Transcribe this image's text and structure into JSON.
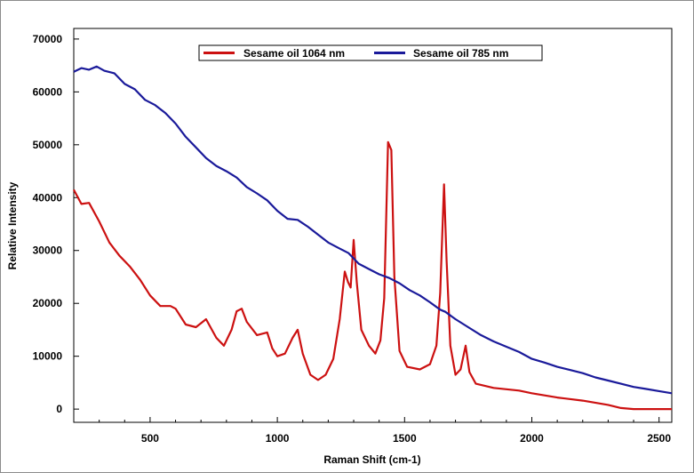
{
  "chart_data": {
    "type": "line",
    "xlabel": "Raman Shift (cm-1)",
    "ylabel": "Relative Intensity",
    "xlim": [
      200,
      2550
    ],
    "ylim": [
      -2500,
      72000
    ],
    "x_ticks": [
      500,
      1000,
      1500,
      2000,
      2500
    ],
    "x_tick_labels": [
      "500",
      "1000",
      "1500",
      "2000",
      "2500"
    ],
    "y_ticks": [
      0,
      10000,
      20000,
      30000,
      40000,
      50000,
      60000,
      70000
    ],
    "y_tick_labels": [
      "0",
      "10000",
      "20000",
      "30000",
      "40000",
      "50000",
      "60000",
      "70000"
    ],
    "grid": false,
    "legend_position": "top-center",
    "series": [
      {
        "name": "Sesame oil 1064 nm",
        "color": "#cc1111",
        "points": [
          [
            200,
            41500
          ],
          [
            230,
            38800
          ],
          [
            260,
            39000
          ],
          [
            300,
            35500
          ],
          [
            340,
            31500
          ],
          [
            380,
            29000
          ],
          [
            420,
            27000
          ],
          [
            460,
            24500
          ],
          [
            500,
            21500
          ],
          [
            540,
            19500
          ],
          [
            580,
            19500
          ],
          [
            600,
            19000
          ],
          [
            640,
            16000
          ],
          [
            680,
            15500
          ],
          [
            720,
            17000
          ],
          [
            760,
            13500
          ],
          [
            790,
            12000
          ],
          [
            820,
            15000
          ],
          [
            840,
            18500
          ],
          [
            860,
            19000
          ],
          [
            880,
            16500
          ],
          [
            920,
            14000
          ],
          [
            960,
            14500
          ],
          [
            980,
            11500
          ],
          [
            1000,
            10000
          ],
          [
            1030,
            10500
          ],
          [
            1060,
            13500
          ],
          [
            1080,
            15000
          ],
          [
            1100,
            10500
          ],
          [
            1130,
            6500
          ],
          [
            1160,
            5500
          ],
          [
            1190,
            6500
          ],
          [
            1220,
            9500
          ],
          [
            1245,
            17000
          ],
          [
            1265,
            26000
          ],
          [
            1278,
            24000
          ],
          [
            1288,
            23000
          ],
          [
            1300,
            32000
          ],
          [
            1312,
            24000
          ],
          [
            1330,
            15000
          ],
          [
            1360,
            12000
          ],
          [
            1385,
            10500
          ],
          [
            1405,
            13000
          ],
          [
            1420,
            21000
          ],
          [
            1435,
            50500
          ],
          [
            1448,
            49000
          ],
          [
            1460,
            25000
          ],
          [
            1480,
            11000
          ],
          [
            1510,
            8000
          ],
          [
            1560,
            7500
          ],
          [
            1600,
            8500
          ],
          [
            1625,
            12000
          ],
          [
            1640,
            22000
          ],
          [
            1655,
            42500
          ],
          [
            1665,
            28000
          ],
          [
            1680,
            12000
          ],
          [
            1700,
            6500
          ],
          [
            1720,
            7500
          ],
          [
            1740,
            12000
          ],
          [
            1755,
            7000
          ],
          [
            1780,
            4800
          ],
          [
            1850,
            4000
          ],
          [
            1950,
            3500
          ],
          [
            2000,
            3000
          ],
          [
            2100,
            2200
          ],
          [
            2200,
            1600
          ],
          [
            2300,
            800
          ],
          [
            2350,
            200
          ],
          [
            2400,
            0
          ],
          [
            2550,
            0
          ]
        ]
      },
      {
        "name": "Sesame oil 785 nm",
        "color": "#1a1a9a",
        "points": [
          [
            200,
            63800
          ],
          [
            230,
            64500
          ],
          [
            260,
            64200
          ],
          [
            290,
            64800
          ],
          [
            320,
            64000
          ],
          [
            360,
            63500
          ],
          [
            400,
            61500
          ],
          [
            440,
            60500
          ],
          [
            480,
            58500
          ],
          [
            520,
            57500
          ],
          [
            560,
            56000
          ],
          [
            600,
            54000
          ],
          [
            640,
            51500
          ],
          [
            680,
            49500
          ],
          [
            720,
            47500
          ],
          [
            760,
            46000
          ],
          [
            800,
            45000
          ],
          [
            840,
            43800
          ],
          [
            880,
            42000
          ],
          [
            920,
            40800
          ],
          [
            960,
            39500
          ],
          [
            1000,
            37500
          ],
          [
            1040,
            36000
          ],
          [
            1080,
            35800
          ],
          [
            1120,
            34500
          ],
          [
            1160,
            33000
          ],
          [
            1200,
            31500
          ],
          [
            1240,
            30500
          ],
          [
            1280,
            29500
          ],
          [
            1320,
            27500
          ],
          [
            1360,
            26500
          ],
          [
            1400,
            25500
          ],
          [
            1440,
            24800
          ],
          [
            1480,
            23800
          ],
          [
            1520,
            22500
          ],
          [
            1560,
            21500
          ],
          [
            1600,
            20200
          ],
          [
            1640,
            18800
          ],
          [
            1660,
            18400
          ],
          [
            1700,
            17000
          ],
          [
            1750,
            15500
          ],
          [
            1800,
            14000
          ],
          [
            1850,
            12800
          ],
          [
            1900,
            11800
          ],
          [
            1950,
            10800
          ],
          [
            2000,
            9500
          ],
          [
            2050,
            8800
          ],
          [
            2100,
            8000
          ],
          [
            2150,
            7400
          ],
          [
            2200,
            6800
          ],
          [
            2250,
            6000
          ],
          [
            2300,
            5400
          ],
          [
            2350,
            4800
          ],
          [
            2400,
            4200
          ],
          [
            2450,
            3800
          ],
          [
            2500,
            3400
          ],
          [
            2550,
            3000
          ]
        ]
      }
    ]
  }
}
